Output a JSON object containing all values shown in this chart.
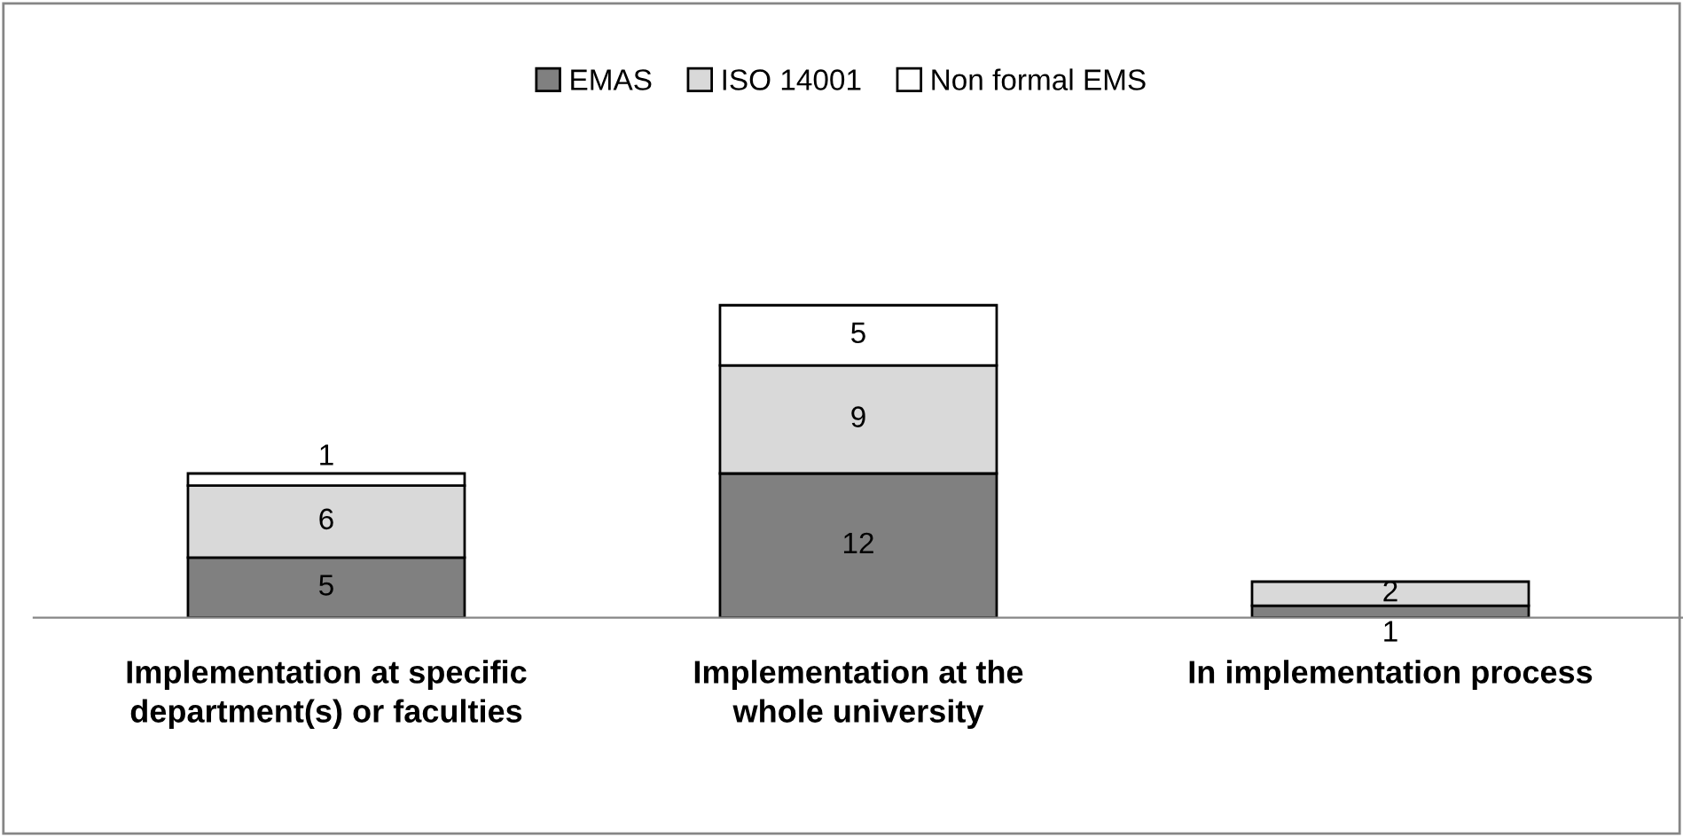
{
  "chart_data": {
    "type": "bar",
    "stacked": true,
    "categories": [
      "Implementation at specific\ndepartment(s) or faculties",
      "Implementation at the\nwhole university",
      "In implementation process"
    ],
    "series": [
      {
        "name": "EMAS",
        "color": "#808080",
        "values": [
          5,
          12,
          1
        ],
        "value_labels": [
          "5",
          "12",
          "1"
        ]
      },
      {
        "name": "ISO 14001",
        "color": "#d9d9d9",
        "values": [
          6,
          9,
          2
        ],
        "value_labels": [
          "6",
          "9",
          "2"
        ]
      },
      {
        "name": "Non formal EMS",
        "color": "#ffffff",
        "values": [
          1,
          5,
          null
        ],
        "value_labels": [
          "1",
          "5",
          null
        ]
      }
    ],
    "legend": "top",
    "grid": false
  }
}
